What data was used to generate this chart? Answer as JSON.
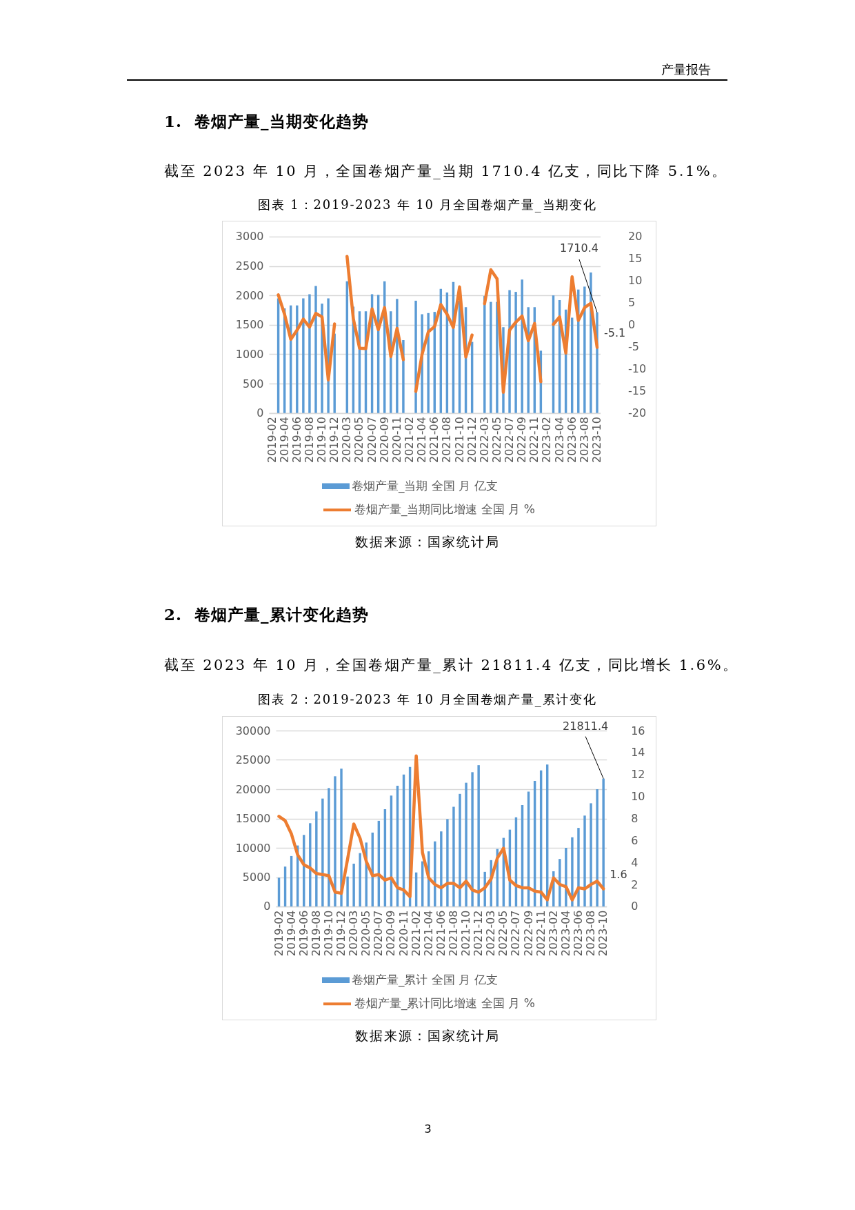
{
  "chart_data": [
    {
      "type": "bar",
      "title": "图表 1：2019-2023 年 10 月全国卷烟产量_当期变化",
      "annotations": [
        "产量报告",
        "1.  卷烟产量_当期变化趋势",
        "截至 2023 年 10 月，全国卷烟产量_当期 1710.4 亿支，同比下降 5.1%。",
        "数据来源：国家统计局"
      ],
      "categories": [
        "2019-02",
        null,
        "2019-04",
        null,
        "2019-06",
        null,
        "2019-08",
        null,
        "2019-10",
        null,
        "2019-12",
        null,
        "2020-03",
        null,
        "2020-05",
        null,
        "2020-07",
        null,
        "2020-09",
        null,
        "2020-11",
        null,
        "2021-02",
        null,
        "2021-04",
        null,
        "2021-06",
        null,
        "2021-08",
        null,
        "2021-10",
        null,
        "2021-12",
        null,
        "2022-03",
        null,
        "2022-05",
        null,
        "2022-07",
        null,
        "2022-09",
        null,
        "2022-11",
        null,
        "2023-02",
        null,
        "2023-04",
        null,
        "2023-06",
        null,
        "2023-08",
        null,
        "2023-10"
      ],
      "series": [
        {
          "name": "卷烟产量_当期 全国 月 亿支",
          "color": "#5b9bd5",
          "values": [
            null,
            1950,
            1780,
            1830,
            1830,
            1950,
            2020,
            2160,
            1860,
            1950,
            1350,
            null,
            2240,
            1810,
            1730,
            1730,
            2020,
            2010,
            2240,
            1730,
            1940,
            1240,
            null,
            1910,
            1680,
            1700,
            1720,
            2110,
            2050,
            2230,
            1910,
            1800,
            1210,
            null,
            1990,
            1890,
            1890,
            1460,
            2090,
            2060,
            2270,
            1800,
            1800,
            1060,
            null,
            2000,
            1920,
            1760,
            1620,
            2100,
            2150,
            2390,
            1710.4
          ],
          "value_labels": [
            null,
            null,
            null,
            null,
            null,
            null,
            null,
            null,
            null,
            null,
            null,
            null,
            null,
            null,
            null,
            null,
            null,
            null,
            null,
            null,
            null,
            null,
            null,
            null,
            null,
            null,
            null,
            null,
            null,
            null,
            null,
            null,
            null,
            null,
            null,
            null,
            null,
            null,
            null,
            null,
            null,
            null,
            null,
            null,
            null,
            null,
            null,
            null,
            null,
            null,
            null,
            null,
            "1710.4"
          ]
        },
        {
          "name": "卷烟产量_当期同比增速 全国 月 %",
          "type": "line",
          "axis": "y2",
          "color": "#ed7d31",
          "values": [
            null,
            6.8,
            2.4,
            -3.3,
            -1.2,
            1.3,
            -0.5,
            2.6,
            1.8,
            -12.5,
            0.2,
            null,
            15.5,
            1.4,
            -5.3,
            -5.4,
            3.6,
            -1.1,
            3.9,
            -7.2,
            -0.8,
            -7.9,
            null,
            -15.1,
            -6.7,
            -1.6,
            -0.4,
            4.6,
            2.4,
            -0.6,
            8.6,
            -7.3,
            -2.3,
            null,
            4.8,
            12.5,
            10.4,
            -15.3,
            -1.2,
            0.6,
            2.0,
            -3.6,
            0.3,
            -12.9,
            null,
            0.1,
            1.8,
            -6.4,
            10.9,
            1.0,
            3.9,
            4.9,
            -5.1
          ],
          "value_labels": [
            null,
            null,
            null,
            null,
            null,
            null,
            null,
            null,
            null,
            null,
            null,
            null,
            null,
            null,
            null,
            null,
            null,
            null,
            null,
            null,
            null,
            null,
            null,
            null,
            null,
            null,
            null,
            null,
            null,
            null,
            null,
            null,
            null,
            null,
            null,
            null,
            null,
            null,
            null,
            null,
            null,
            null,
            null,
            null,
            null,
            null,
            null,
            null,
            null,
            null,
            null,
            null,
            "-5.1"
          ]
        }
      ],
      "ylim": [
        0,
        3000
      ],
      "yticks": [
        0,
        500,
        1000,
        1500,
        2000,
        2500,
        3000
      ],
      "y2lim": [
        -20,
        20
      ],
      "y2ticks": [
        -20,
        -15,
        -10,
        -5,
        0,
        5,
        10,
        15,
        20
      ],
      "grid": "y",
      "legend": "bottom"
    },
    {
      "type": "bar",
      "title": "图表 2：2019-2023 年 10 月全国卷烟产量_累计变化",
      "annotations": [
        "2.  卷烟产量_累计变化趋势",
        "截至 2023 年 10 月，全国卷烟产量_累计 21811.4 亿支，同比增长 1.6%。",
        "数据来源：国家统计局",
        "3"
      ],
      "categories": [
        "2019-02",
        null,
        "2019-04",
        null,
        "2019-06",
        null,
        "2019-08",
        null,
        "2019-10",
        null,
        "2019-12",
        null,
        "2020-03",
        null,
        "2020-05",
        null,
        "2020-07",
        null,
        "2020-09",
        null,
        "2020-11",
        null,
        "2021-02",
        null,
        "2021-04",
        null,
        "2021-06",
        null,
        "2021-08",
        null,
        "2021-10",
        null,
        "2021-12",
        null,
        "2022-03",
        null,
        "2022-05",
        null,
        "2022-07",
        null,
        "2022-09",
        null,
        "2022-11",
        null,
        "2023-02",
        null,
        "2023-04",
        null,
        "2023-06",
        null,
        "2023-08",
        null,
        "2023-10"
      ],
      "series": [
        {
          "name": "卷烟产量_累计 全国 月 亿支",
          "color": "#5b9bd5",
          "values": [
            4900,
            6800,
            8600,
            10400,
            12200,
            14200,
            16200,
            18400,
            20200,
            22200,
            23500,
            5100,
            7300,
            9100,
            10900,
            12600,
            14600,
            16600,
            18900,
            20600,
            22500,
            23800,
            5800,
            7700,
            9400,
            11100,
            12800,
            14900,
            17000,
            19200,
            21100,
            22900,
            24100,
            5900,
            7900,
            9800,
            11700,
            13100,
            15200,
            17300,
            19600,
            21400,
            23200,
            24200,
            6000,
            8100,
            10000,
            11800,
            13400,
            15500,
            17600,
            20000,
            21811.4
          ],
          "value_labels": [
            null,
            null,
            null,
            null,
            null,
            null,
            null,
            null,
            null,
            null,
            null,
            null,
            null,
            null,
            null,
            null,
            null,
            null,
            null,
            null,
            null,
            null,
            null,
            null,
            null,
            null,
            null,
            null,
            null,
            null,
            null,
            null,
            null,
            null,
            null,
            null,
            null,
            null,
            null,
            null,
            null,
            null,
            null,
            null,
            null,
            null,
            null,
            null,
            null,
            null,
            null,
            null,
            "21811.4"
          ]
        },
        {
          "name": "卷烟产量_累计同比增速 全国 月 %",
          "type": "line",
          "axis": "y2",
          "color": "#ed7d31",
          "values": [
            8.2,
            7.8,
            6.6,
            4.7,
            3.8,
            3.5,
            3.0,
            2.9,
            2.8,
            1.3,
            1.2,
            4.3,
            7.5,
            6.2,
            4.1,
            2.8,
            2.9,
            2.4,
            2.6,
            1.7,
            1.5,
            0.9,
            13.7,
            4.9,
            2.6,
            2.0,
            1.7,
            2.1,
            2.1,
            1.7,
            2.3,
            1.5,
            1.3,
            1.7,
            2.5,
            4.4,
            5.3,
            2.4,
            1.9,
            1.7,
            1.7,
            1.4,
            1.3,
            0.6,
            2.6,
            2.0,
            1.8,
            0.6,
            1.7,
            1.6,
            2.0,
            2.3,
            1.6
          ],
          "value_labels": [
            null,
            null,
            null,
            null,
            null,
            null,
            null,
            null,
            null,
            null,
            null,
            null,
            null,
            null,
            null,
            null,
            null,
            null,
            null,
            null,
            null,
            null,
            null,
            null,
            null,
            null,
            null,
            null,
            null,
            null,
            null,
            null,
            null,
            null,
            null,
            null,
            null,
            null,
            null,
            null,
            null,
            null,
            null,
            null,
            null,
            null,
            null,
            null,
            null,
            null,
            null,
            null,
            "1.6"
          ]
        }
      ],
      "ylim": [
        0,
        30000
      ],
      "yticks": [
        0,
        5000,
        10000,
        15000,
        20000,
        25000,
        30000
      ],
      "y2lim": [
        0,
        16
      ],
      "y2ticks": [
        0,
        2,
        4,
        6,
        8,
        10,
        12,
        14,
        16
      ],
      "grid": "y",
      "legend": "bottom"
    }
  ]
}
